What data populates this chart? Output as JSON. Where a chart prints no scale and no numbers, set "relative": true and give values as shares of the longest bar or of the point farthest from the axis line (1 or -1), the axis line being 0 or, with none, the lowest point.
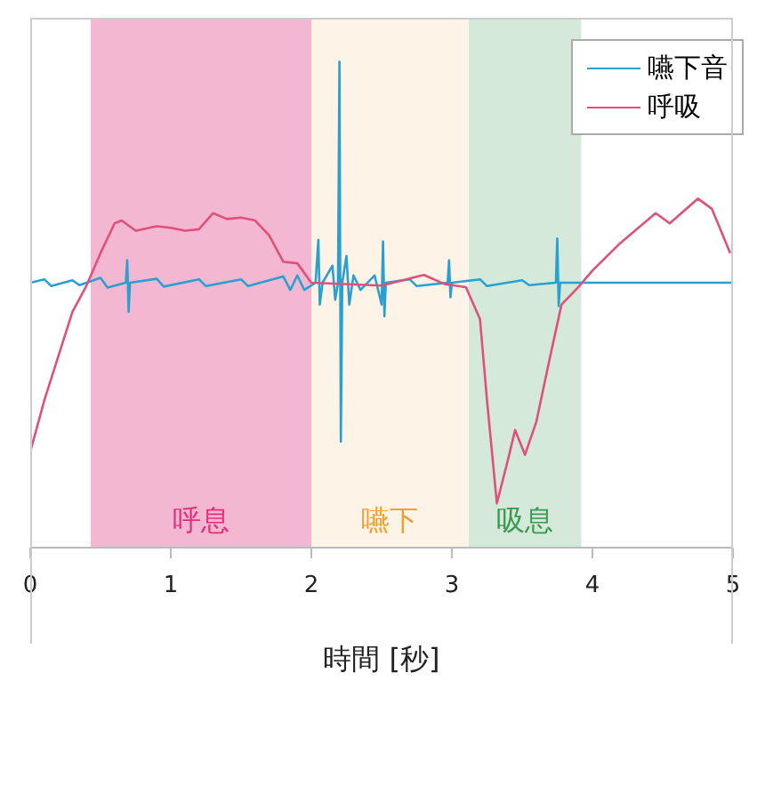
{
  "chart_data": {
    "type": "line",
    "relative": true,
    "xlabel": "時間 [秒]",
    "xlim": [
      0,
      5
    ],
    "xticks": [
      0,
      1,
      2,
      3,
      4,
      5
    ],
    "tick_labels": "x",
    "grid": false,
    "legend": "top right",
    "marker": "none",
    "line_style": "solid",
    "bands": [
      {
        "axis": "x",
        "from": 0.43,
        "to": 2.0,
        "label": "呼息",
        "color": "#e0307a"
      },
      {
        "axis": "x",
        "from": 2.0,
        "to": 3.12,
        "label": "嚥下",
        "color": "#f0a030"
      },
      {
        "axis": "x",
        "from": 3.12,
        "to": 3.92,
        "label": "吸息",
        "color": "#3a9a50"
      }
    ],
    "series": [
      {
        "name": "嚥下音",
        "color": "#2aa0d0",
        "x": [
          0,
          0.1,
          0.15,
          0.3,
          0.35,
          0.5,
          0.55,
          0.68,
          0.69,
          0.7,
          0.71,
          0.9,
          0.95,
          1.2,
          1.25,
          1.5,
          1.55,
          1.8,
          1.85,
          1.9,
          1.95,
          2.03,
          2.05,
          2.06,
          2.08,
          2.15,
          2.17,
          2.19,
          2.2,
          2.21,
          2.22,
          2.25,
          2.27,
          2.3,
          2.35,
          2.45,
          2.5,
          2.51,
          2.52,
          2.53,
          2.7,
          2.75,
          2.97,
          2.98,
          2.99,
          3.0,
          3.2,
          3.25,
          3.5,
          3.55,
          3.74,
          3.75,
          3.76,
          3.77,
          4.0,
          5.0
        ],
        "values": [
          0.545,
          0.552,
          0.538,
          0.55,
          0.54,
          0.555,
          0.535,
          0.545,
          0.591,
          0.485,
          0.545,
          0.553,
          0.537,
          0.552,
          0.538,
          0.552,
          0.538,
          0.558,
          0.53,
          0.56,
          0.53,
          0.545,
          0.633,
          0.5,
          0.545,
          0.58,
          0.51,
          0.545,
          1,
          0.218,
          0.545,
          0.6,
          0.5,
          0.56,
          0.53,
          0.56,
          0.5,
          0.63,
          0.476,
          0.545,
          0.552,
          0.538,
          0.545,
          0.591,
          0.515,
          0.545,
          0.552,
          0.538,
          0.55,
          0.54,
          0.545,
          0.636,
          0.497,
          0.545,
          0.545,
          0.545
        ]
      },
      {
        "name": "呼吸",
        "color": "#e0507a",
        "x": [
          0,
          0.1,
          0.2,
          0.3,
          0.4,
          0.5,
          0.6,
          0.65,
          0.75,
          0.9,
          1.0,
          1.1,
          1.2,
          1.3,
          1.4,
          1.5,
          1.6,
          1.7,
          1.8,
          1.9,
          2.0,
          2.5,
          2.8,
          2.95,
          3.1,
          3.2,
          3.25,
          3.32,
          3.4,
          3.45,
          3.52,
          3.6,
          3.7,
          3.78,
          3.9,
          4.0,
          4.2,
          4.45,
          4.55,
          4.75,
          4.85,
          4.98
        ],
        "values": [
          0.197,
          0.303,
          0.394,
          0.485,
          0.539,
          0.606,
          0.667,
          0.673,
          0.652,
          0.661,
          0.658,
          0.652,
          0.655,
          0.688,
          0.676,
          0.679,
          0.673,
          0.642,
          0.588,
          0.585,
          0.545,
          0.539,
          0.561,
          0.542,
          0.536,
          0.47,
          0.303,
          0.091,
          0.182,
          0.242,
          0.191,
          0.258,
          0.394,
          0.5,
          0.536,
          0.57,
          0.627,
          0.688,
          0.667,
          0.718,
          0.697,
          0.606
        ]
      }
    ]
  }
}
